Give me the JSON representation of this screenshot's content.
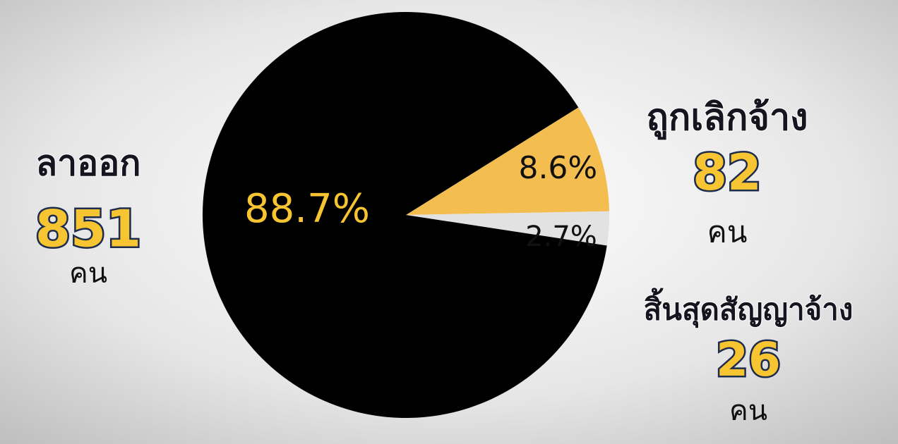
{
  "chart_data": {
    "type": "pie",
    "categories": [
      "ลาออก",
      "ถูกเลิกจ้าง",
      "สิ้นสุดสัญญาจ้าง"
    ],
    "values": [
      88.7,
      8.6,
      2.7
    ],
    "value_labels": [
      "88.7%",
      "8.6%",
      "2.7%"
    ],
    "colors": [
      "#000000",
      "#f3bd50",
      "#e2e2e2"
    ],
    "label_colors": [
      "#f7c531",
      "#111111",
      "#111111"
    ],
    "counts": [
      851,
      82,
      26
    ],
    "unit": "คน"
  }
}
